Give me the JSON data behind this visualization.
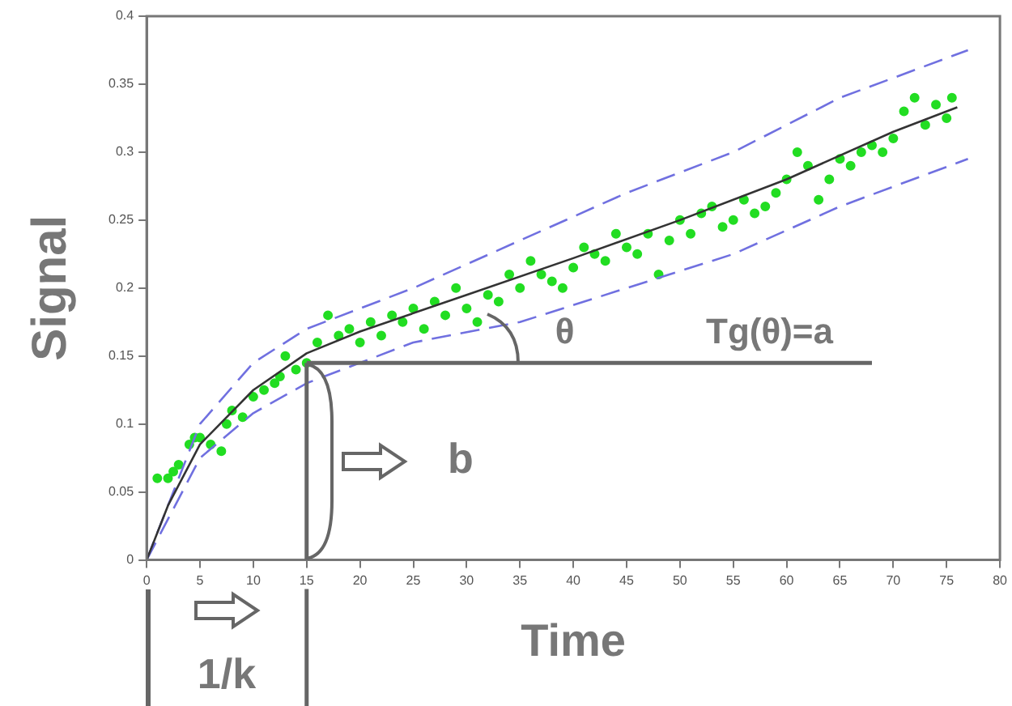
{
  "chart_data": {
    "type": "scatter",
    "xlabel": "Time",
    "ylabel": "Signal",
    "xlim": [
      0,
      80
    ],
    "xticks": [
      0,
      5,
      10,
      15,
      20,
      25,
      30,
      35,
      40,
      45,
      50,
      55,
      60,
      65,
      70,
      75,
      80
    ],
    "ylim": [
      0,
      0.4
    ],
    "yticks": [
      0,
      0.05,
      0.1,
      0.15,
      0.2,
      0.25,
      0.3,
      0.35,
      0.4
    ],
    "grid": false,
    "marker": "circle",
    "series": [
      {
        "type": "scatter",
        "color": "#22dd22",
        "x": [
          1,
          2,
          2.5,
          3,
          4,
          4.5,
          5,
          6,
          7,
          7.5,
          8,
          9,
          10,
          11,
          12,
          12.5,
          13,
          14,
          15,
          16,
          17,
          18,
          19,
          20,
          21,
          22,
          23,
          24,
          25,
          26,
          27,
          28,
          29,
          30,
          31,
          32,
          33,
          34,
          35,
          36,
          37,
          38,
          39,
          40,
          41,
          42,
          43,
          44,
          45,
          46,
          47,
          48,
          49,
          50,
          51,
          52,
          53,
          54,
          55,
          56,
          57,
          58,
          59,
          60,
          61,
          62,
          63,
          64,
          65,
          66,
          67,
          68,
          69,
          70,
          71,
          72,
          73,
          74,
          75,
          75.5
        ],
        "values": [
          0.06,
          0.06,
          0.065,
          0.07,
          0.085,
          0.09,
          0.09,
          0.085,
          0.08,
          0.1,
          0.11,
          0.105,
          0.12,
          0.125,
          0.13,
          0.135,
          0.15,
          0.14,
          0.145,
          0.16,
          0.18,
          0.165,
          0.17,
          0.16,
          0.175,
          0.165,
          0.18,
          0.175,
          0.185,
          0.17,
          0.19,
          0.18,
          0.2,
          0.185,
          0.175,
          0.195,
          0.19,
          0.21,
          0.2,
          0.22,
          0.21,
          0.205,
          0.2,
          0.215,
          0.23,
          0.225,
          0.22,
          0.24,
          0.23,
          0.225,
          0.24,
          0.21,
          0.235,
          0.25,
          0.24,
          0.255,
          0.26,
          0.245,
          0.25,
          0.265,
          0.255,
          0.26,
          0.27,
          0.28,
          0.3,
          0.29,
          0.265,
          0.28,
          0.295,
          0.29,
          0.3,
          0.305,
          0.3,
          0.31,
          0.33,
          0.34,
          0.32,
          0.335,
          0.325,
          0.34
        ]
      },
      {
        "type": "line",
        "color": "#333333",
        "marker": "none",
        "line_style": "solid",
        "x": [
          0,
          2,
          5,
          10,
          15,
          20,
          30,
          40,
          50,
          60,
          70,
          76
        ],
        "values": [
          0,
          0.04,
          0.085,
          0.125,
          0.152,
          0.168,
          0.195,
          0.222,
          0.25,
          0.28,
          0.315,
          0.333
        ]
      },
      {
        "type": "line",
        "color": "#7070e0",
        "marker": "none",
        "line_style": "dashed",
        "x": [
          0,
          5,
          10,
          15,
          25,
          35,
          45,
          55,
          65,
          77
        ],
        "values": [
          0,
          0.1,
          0.145,
          0.17,
          0.2,
          0.235,
          0.27,
          0.3,
          0.34,
          0.375
        ]
      },
      {
        "type": "line",
        "color": "#7070e0",
        "marker": "none",
        "line_style": "dashed",
        "x": [
          0,
          5,
          10,
          15,
          25,
          35,
          45,
          55,
          65,
          77
        ],
        "values": [
          0,
          0.075,
          0.108,
          0.13,
          0.16,
          0.175,
          0.2,
          0.225,
          0.26,
          0.295
        ]
      }
    ],
    "ref_lines": [
      {
        "axis": "x",
        "value": 15,
        "label": "1/k",
        "color": "#666666"
      },
      {
        "axis": "y",
        "value": 0.145,
        "label": "b",
        "color": "#666666"
      }
    ],
    "annotations": [
      "θ",
      "Tg(θ)=a"
    ]
  }
}
